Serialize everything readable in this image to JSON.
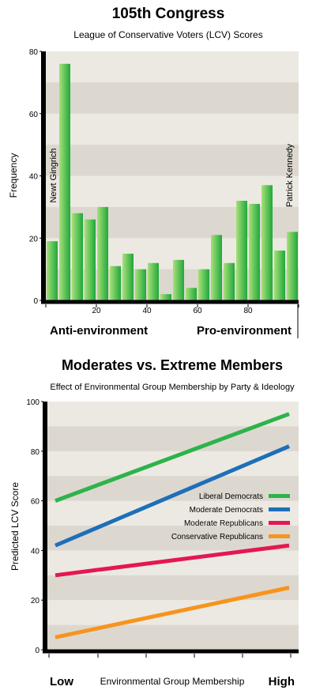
{
  "colors": {
    "band_light": "#ece9e3",
    "band_dark": "#dcd8d0",
    "bar_light": "#a8e07a",
    "bar_dark": "#1fa83a",
    "axis": "#000000"
  },
  "chart_data": [
    {
      "type": "bar",
      "title": "105th Congress",
      "subtitle": "League of Conservative Voters (LCV) Scores",
      "ylabel": "Frequency",
      "xlabel_left": "Anti-environment",
      "xlabel_right": "Pro-environment",
      "ylim": [
        0,
        80
      ],
      "xlim": [
        0,
        100
      ],
      "bin_width": 5,
      "x_ticks": [
        "20",
        "40",
        "60",
        "80"
      ],
      "y_ticks": [
        "0",
        "20",
        "40",
        "60",
        "80"
      ],
      "bins": [
        0,
        5,
        10,
        15,
        20,
        25,
        30,
        35,
        40,
        45,
        50,
        55,
        60,
        65,
        70,
        75,
        80,
        85,
        90,
        95
      ],
      "values": [
        19,
        76,
        28,
        26,
        30,
        11,
        15,
        10,
        12,
        2,
        13,
        4,
        10,
        21,
        12,
        32,
        31,
        37,
        16,
        22
      ],
      "annotations": [
        {
          "text": "Newt Gingrich",
          "x": 2
        },
        {
          "text": "Patrick Kennedy",
          "x": 98
        }
      ],
      "grid": "horizontal bands"
    },
    {
      "type": "line",
      "title": "Moderates vs. Extreme Members",
      "subtitle": "Effect of Environmental Group Membership by Party & Ideology",
      "ylabel": "Predicted LCV Score",
      "xlabel": "Environmental Group Membership",
      "xlabel_left": "Low",
      "xlabel_right": "High",
      "ylim": [
        0,
        100
      ],
      "y_ticks": [
        "0",
        "20",
        "40",
        "60",
        "80",
        "100"
      ],
      "x": [
        "Low",
        "High"
      ],
      "legend_position": "right-middle",
      "series": [
        {
          "name": "Liberal Democrats",
          "values": [
            60,
            95
          ],
          "color": "#2db34a"
        },
        {
          "name": "Moderate Democrats",
          "values": [
            42,
            82
          ],
          "color": "#1e6fb8"
        },
        {
          "name": "Moderate Republicans",
          "values": [
            30,
            42
          ],
          "color": "#e5174f"
        },
        {
          "name": "Conservative Republicans",
          "values": [
            5,
            25
          ],
          "color": "#f7941d"
        }
      ],
      "grid": "horizontal bands"
    }
  ]
}
